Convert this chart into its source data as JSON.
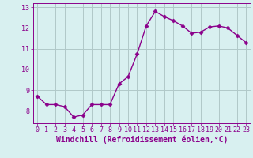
{
  "x": [
    0,
    1,
    2,
    3,
    4,
    5,
    6,
    7,
    8,
    9,
    10,
    11,
    12,
    13,
    14,
    15,
    16,
    17,
    18,
    19,
    20,
    21,
    22,
    23
  ],
  "y": [
    8.7,
    8.3,
    8.3,
    8.2,
    7.7,
    7.8,
    8.3,
    8.3,
    8.3,
    9.3,
    9.65,
    10.75,
    12.1,
    12.8,
    12.55,
    12.35,
    12.1,
    11.75,
    11.8,
    12.05,
    12.1,
    12.0,
    11.65,
    11.3
  ],
  "line_color": "#8B008B",
  "marker": "D",
  "marker_size": 2.5,
  "line_width": 1.0,
  "bg_color": "#d8f0f0",
  "grid_color": "#b0c8c8",
  "xlabel": "Windchill (Refroidissement éolien,°C)",
  "xlabel_fontsize": 7,
  "tick_fontsize": 6,
  "xlim": [
    -0.5,
    23.5
  ],
  "ylim": [
    7.4,
    13.2
  ],
  "yticks": [
    8,
    9,
    10,
    11,
    12,
    13
  ],
  "xticks": [
    0,
    1,
    2,
    3,
    4,
    5,
    6,
    7,
    8,
    9,
    10,
    11,
    12,
    13,
    14,
    15,
    16,
    17,
    18,
    19,
    20,
    21,
    22,
    23
  ]
}
